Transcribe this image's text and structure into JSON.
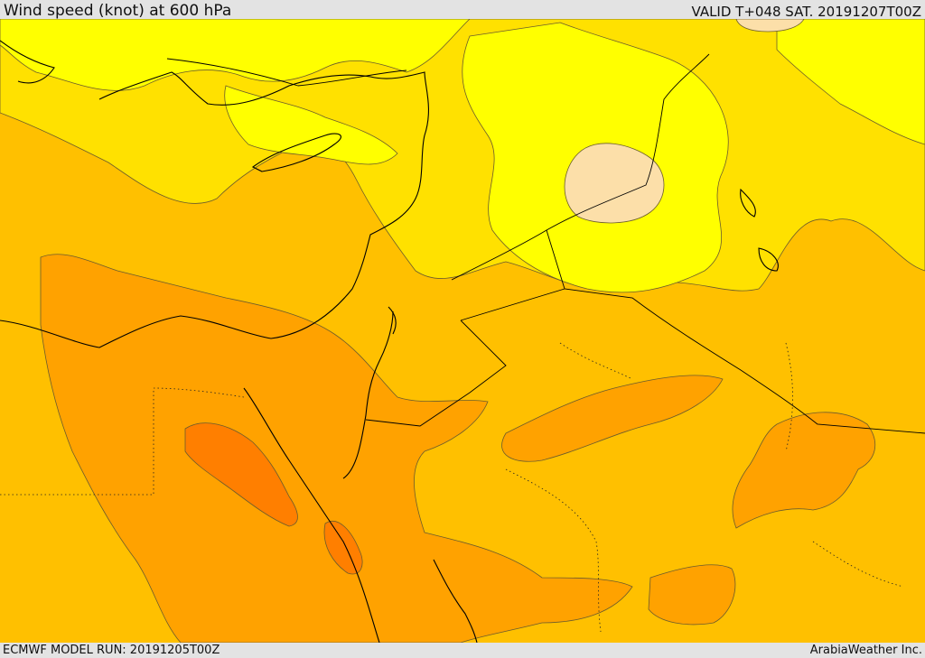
{
  "header": {
    "title": "Wind speed (knot) at 600 hPa",
    "valid": "VALID T+048 SAT. 20191207T00Z"
  },
  "footer": {
    "model_run": "ECMWF MODEL RUN: 20191205T00Z",
    "credit": "ArabiaWeather Inc."
  },
  "map": {
    "variable": "wind speed",
    "level": "600 hPa",
    "units": "knot",
    "colors": {
      "band_lowest": "#ffff00",
      "band_low": "#ffe100",
      "band_mid": "#ffc000",
      "band_high": "#ffa200",
      "band_higher": "#ff8a00",
      "band_max": "#ff7700",
      "calm_patch": "#fcdfa9",
      "coastline": "#000000",
      "border": "#000000",
      "contour": "#6b5c2c"
    }
  }
}
